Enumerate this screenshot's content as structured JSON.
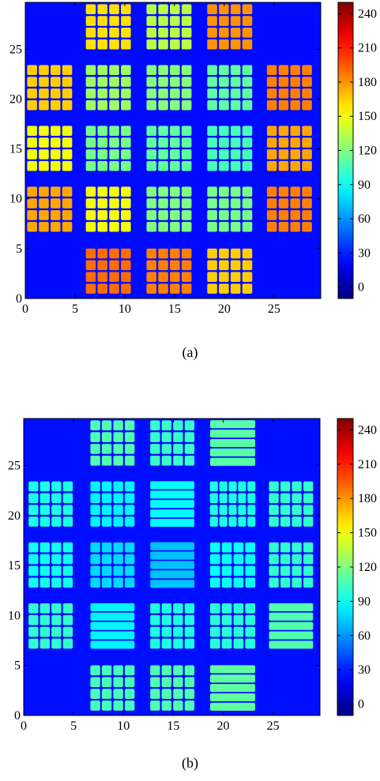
{
  "colors": {
    "background_a": "#1a3ccd",
    "background_b": "#1c3fd3",
    "colormap": [
      "#00007f",
      "#0000ff",
      "#007fff",
      "#00ffff",
      "#7fff7f",
      "#ffff00",
      "#ff7f00",
      "#ff0000",
      "#7f0000"
    ]
  },
  "chart_data": [
    {
      "type": "heatmap",
      "caption": "(a)",
      "x_ticks": [
        0,
        5,
        10,
        15,
        20,
        25
      ],
      "y_ticks": [
        0,
        5,
        10,
        15,
        20,
        25
      ],
      "xlim": [
        0,
        29.7
      ],
      "ylim": [
        0,
        29.7
      ],
      "colorbar": {
        "min": -10,
        "max": 250,
        "ticks": [
          0,
          30,
          60,
          90,
          120,
          150,
          180,
          210,
          240
        ]
      },
      "background_value": 25,
      "blocks": [
        {
          "x0": 6.0,
          "x1": 10.7,
          "y0": 24.9,
          "y1": 29.6,
          "rows": 4,
          "cols": 4,
          "value": 160
        },
        {
          "x0": 12.1,
          "x1": 16.8,
          "y0": 24.9,
          "y1": 29.6,
          "rows": 4,
          "cols": 4,
          "value": 135
        },
        {
          "x0": 18.2,
          "x1": 22.9,
          "y0": 24.9,
          "y1": 29.6,
          "rows": 4,
          "cols": 4,
          "value": 180
        },
        {
          "x0": 0.1,
          "x1": 4.8,
          "y0": 18.8,
          "y1": 23.5,
          "rows": 4,
          "cols": 4,
          "value": 165
        },
        {
          "x0": 6.0,
          "x1": 10.7,
          "y0": 18.8,
          "y1": 23.5,
          "rows": 4,
          "cols": 4,
          "value": 128
        },
        {
          "x0": 12.1,
          "x1": 16.8,
          "y0": 18.8,
          "y1": 23.5,
          "rows": 4,
          "cols": 4,
          "value": 122
        },
        {
          "x0": 18.2,
          "x1": 22.9,
          "y0": 18.8,
          "y1": 23.5,
          "rows": 4,
          "cols": 4,
          "value": 112
        },
        {
          "x0": 24.2,
          "x1": 28.9,
          "y0": 18.8,
          "y1": 23.5,
          "rows": 4,
          "cols": 4,
          "value": 185
        },
        {
          "x0": 0.1,
          "x1": 4.8,
          "y0": 12.7,
          "y1": 17.4,
          "rows": 4,
          "cols": 4,
          "value": 150
        },
        {
          "x0": 6.0,
          "x1": 10.7,
          "y0": 12.7,
          "y1": 17.4,
          "rows": 4,
          "cols": 4,
          "value": 118
        },
        {
          "x0": 12.1,
          "x1": 16.8,
          "y0": 12.7,
          "y1": 17.4,
          "rows": 4,
          "cols": 4,
          "value": 112
        },
        {
          "x0": 18.2,
          "x1": 22.9,
          "y0": 12.7,
          "y1": 17.4,
          "rows": 4,
          "cols": 4,
          "value": 105
        },
        {
          "x0": 24.2,
          "x1": 28.9,
          "y0": 12.7,
          "y1": 17.4,
          "rows": 4,
          "cols": 4,
          "value": 175
        },
        {
          "x0": 0.1,
          "x1": 4.8,
          "y0": 6.6,
          "y1": 11.3,
          "rows": 4,
          "cols": 4,
          "value": 175
        },
        {
          "x0": 6.0,
          "x1": 10.7,
          "y0": 6.6,
          "y1": 11.3,
          "rows": 4,
          "cols": 4,
          "value": 150
        },
        {
          "x0": 12.1,
          "x1": 16.8,
          "y0": 6.6,
          "y1": 11.3,
          "rows": 4,
          "cols": 4,
          "value": 120
        },
        {
          "x0": 18.2,
          "x1": 22.9,
          "y0": 6.6,
          "y1": 11.3,
          "rows": 4,
          "cols": 4,
          "value": 118
        },
        {
          "x0": 24.2,
          "x1": 28.9,
          "y0": 6.6,
          "y1": 11.3,
          "rows": 4,
          "cols": 4,
          "value": 185
        },
        {
          "x0": 6.0,
          "x1": 10.7,
          "y0": 0.4,
          "y1": 5.1,
          "rows": 4,
          "cols": 4,
          "value": 190
        },
        {
          "x0": 12.1,
          "x1": 16.8,
          "y0": 0.4,
          "y1": 5.1,
          "rows": 4,
          "cols": 4,
          "value": 185
        },
        {
          "x0": 18.2,
          "x1": 22.9,
          "y0": 0.4,
          "y1": 5.1,
          "rows": 4,
          "cols": 4,
          "value": 165
        }
      ]
    },
    {
      "type": "heatmap",
      "caption": "(b)",
      "x_ticks": [
        0,
        5,
        10,
        15,
        20,
        25
      ],
      "y_ticks": [
        0,
        5,
        10,
        15,
        20,
        25
      ],
      "xlim": [
        0,
        29.7
      ],
      "ylim": [
        0,
        29.7
      ],
      "colorbar": {
        "min": -10,
        "max": 250,
        "ticks": [
          0,
          30,
          60,
          90,
          120,
          150,
          180,
          210,
          240
        ]
      },
      "background_value": 26,
      "blocks": [
        {
          "x0": 6.6,
          "x1": 11.2,
          "y0": 24.9,
          "y1": 29.6,
          "rows": 4,
          "cols": 4,
          "value": 108
        },
        {
          "x0": 12.6,
          "x1": 17.2,
          "y0": 24.9,
          "y1": 29.6,
          "rows": 4,
          "cols": 4,
          "value": 102
        },
        {
          "x0": 18.6,
          "x1": 23.3,
          "y0": 24.9,
          "y1": 29.6,
          "rows": 5,
          "cols": 1,
          "value": 110
        },
        {
          "x0": 0.4,
          "x1": 5.0,
          "y0": 18.8,
          "y1": 23.5,
          "rows": 4,
          "cols": 4,
          "value": 95
        },
        {
          "x0": 6.6,
          "x1": 11.2,
          "y0": 18.8,
          "y1": 23.5,
          "rows": 4,
          "cols": 4,
          "value": 85
        },
        {
          "x0": 12.6,
          "x1": 17.2,
          "y0": 18.8,
          "y1": 23.5,
          "rows": 5,
          "cols": 1,
          "value": 88
        },
        {
          "x0": 18.6,
          "x1": 23.3,
          "y0": 18.8,
          "y1": 23.5,
          "rows": 4,
          "cols": 5,
          "value": 95
        },
        {
          "x0": 24.5,
          "x1": 29.1,
          "y0": 18.8,
          "y1": 23.5,
          "rows": 4,
          "cols": 4,
          "value": 100
        },
        {
          "x0": 0.4,
          "x1": 5.0,
          "y0": 12.7,
          "y1": 17.4,
          "rows": 4,
          "cols": 4,
          "value": 92
        },
        {
          "x0": 6.6,
          "x1": 11.2,
          "y0": 12.7,
          "y1": 17.4,
          "rows": 4,
          "cols": 4,
          "value": 78
        },
        {
          "x0": 12.6,
          "x1": 17.2,
          "y0": 12.7,
          "y1": 17.4,
          "rows": 5,
          "cols": 1,
          "value": 72
        },
        {
          "x0": 18.6,
          "x1": 23.3,
          "y0": 12.7,
          "y1": 17.4,
          "rows": 4,
          "cols": 4,
          "value": 90
        },
        {
          "x0": 24.5,
          "x1": 29.1,
          "y0": 12.7,
          "y1": 17.4,
          "rows": 4,
          "cols": 4,
          "value": 100
        },
        {
          "x0": 0.4,
          "x1": 5.0,
          "y0": 6.6,
          "y1": 11.3,
          "rows": 4,
          "cols": 4,
          "value": 100
        },
        {
          "x0": 6.6,
          "x1": 11.2,
          "y0": 6.6,
          "y1": 11.3,
          "rows": 5,
          "cols": 1,
          "value": 85
        },
        {
          "x0": 12.6,
          "x1": 17.2,
          "y0": 6.6,
          "y1": 11.3,
          "rows": 4,
          "cols": 4,
          "value": 95
        },
        {
          "x0": 18.6,
          "x1": 23.3,
          "y0": 6.6,
          "y1": 11.3,
          "rows": 4,
          "cols": 4,
          "value": 98
        },
        {
          "x0": 24.5,
          "x1": 29.1,
          "y0": 6.6,
          "y1": 11.3,
          "rows": 5,
          "cols": 1,
          "value": 108
        },
        {
          "x0": 6.6,
          "x1": 11.2,
          "y0": 0.4,
          "y1": 5.1,
          "rows": 4,
          "cols": 4,
          "value": 105
        },
        {
          "x0": 12.6,
          "x1": 17.2,
          "y0": 0.4,
          "y1": 5.1,
          "rows": 4,
          "cols": 4,
          "value": 108
        },
        {
          "x0": 18.6,
          "x1": 23.3,
          "y0": 0.4,
          "y1": 5.1,
          "rows": 5,
          "cols": 1,
          "value": 112
        }
      ]
    }
  ]
}
